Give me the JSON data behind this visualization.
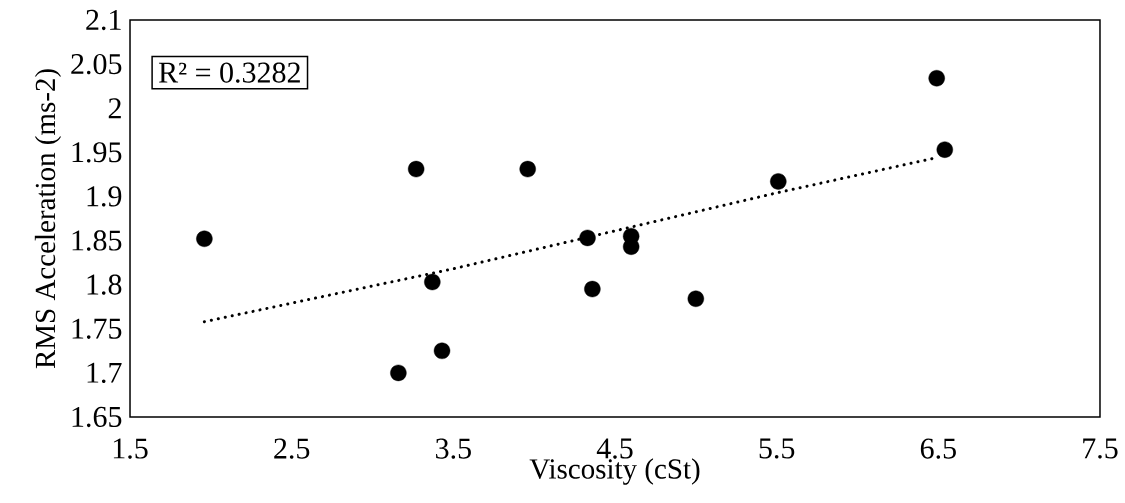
{
  "chart_data": {
    "type": "scatter",
    "xlabel": "Viscosity (cSt)",
    "ylabel": "RMS Acceleration (ms-2)",
    "xlim": [
      1.5,
      7.5
    ],
    "ylim": [
      1.65,
      2.1
    ],
    "xticks": [
      1.5,
      2.5,
      3.5,
      4.5,
      5.5,
      6.5,
      7.5
    ],
    "yticks": [
      1.65,
      1.7,
      1.75,
      1.8,
      1.85,
      1.9,
      1.95,
      2,
      2.05,
      2.1
    ],
    "grid": false,
    "annotations": [
      "R² = 0.3282"
    ],
    "series": [
      {
        "marker": "circle",
        "color": "#000000",
        "x": [
          1.96,
          3.27,
          3.96,
          3.37,
          3.43,
          3.16,
          4.33,
          4.6,
          4.6,
          4.36,
          5.0,
          5.51,
          6.49,
          6.54
        ],
        "values": [
          1.852,
          1.931,
          1.931,
          1.803,
          1.725,
          1.7,
          1.853,
          1.855,
          1.843,
          1.795,
          1.784,
          1.917,
          2.034,
          1.953
        ]
      },
      {
        "type": "line",
        "line_style": "dotted",
        "color": "#000000",
        "x": [
          1.96,
          3.5,
          5.5,
          6.49
        ],
        "values": [
          1.758,
          1.818,
          1.904,
          1.944
        ]
      }
    ]
  }
}
